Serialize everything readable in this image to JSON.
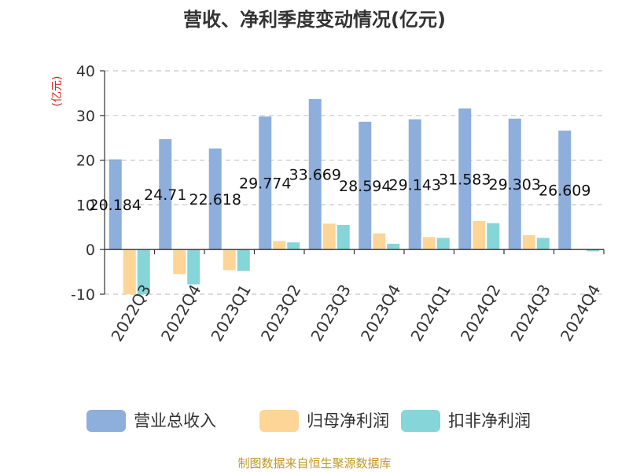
{
  "chart_data": {
    "type": "bar",
    "title": "营收、净利季度变动情况(亿元)",
    "ylabel": "(亿元)",
    "ylim": [
      -10,
      40
    ],
    "yticks": [
      -10,
      0,
      10,
      20,
      30,
      40
    ],
    "grid": true,
    "legend_position": "bottom",
    "categories": [
      "2022Q3",
      "2022Q4",
      "2023Q1",
      "2023Q2",
      "2023Q3",
      "2023Q4",
      "2024Q1",
      "2024Q2",
      "2024Q3",
      "2024Q4"
    ],
    "series": [
      {
        "name": "营业总收入",
        "color": "#8eaedb",
        "values": [
          20.184,
          24.71,
          22.618,
          29.774,
          33.669,
          28.594,
          29.143,
          31.583,
          29.303,
          26.609
        ],
        "labels": [
          "20.184",
          "24.71",
          "22.618",
          "29.774",
          "33.669",
          "28.594",
          "29.143",
          "31.583",
          "29.303",
          "26.609"
        ]
      },
      {
        "name": "归母净利润",
        "color": "#fdd597",
        "values": [
          -10.0,
          -5.5,
          -4.6,
          1.9,
          5.8,
          3.6,
          2.8,
          6.4,
          3.2,
          0.0
        ]
      },
      {
        "name": "扣非净利润",
        "color": "#86d5d8",
        "values": [
          -10.0,
          -7.8,
          -4.8,
          1.6,
          5.5,
          1.3,
          2.6,
          5.9,
          2.6,
          -0.4
        ]
      }
    ]
  },
  "colors": {
    "unit_label": "#dd2222",
    "source_text": "#c09820"
  },
  "source": "制图数据来自恒生聚源数据库"
}
